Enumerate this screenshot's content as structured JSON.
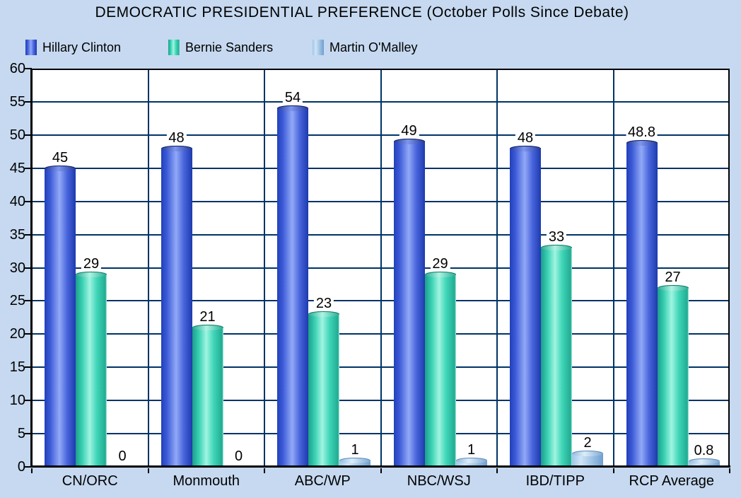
{
  "title": "DEMOCRATIC PRESIDENTIAL PREFERENCE (October Polls Since Debate)",
  "colors": {
    "background": "#c6d9f0",
    "plot_background": "#ffffff",
    "gridline": "#003366",
    "axis": "#000000",
    "clinton_bar": "#2b49c8",
    "sanders_bar": "#2fc7ac",
    "omalley_bar": "#9dc3e6",
    "label_text": "#000000"
  },
  "chart_data": {
    "type": "bar",
    "categories": [
      "CN/ORC",
      "Monmouth",
      "ABC/WP",
      "NBC/WSJ",
      "IBD/TIPP",
      "RCP Average"
    ],
    "series": [
      {
        "key": "clinton",
        "name": "Hillary Clinton",
        "values": [
          45,
          48,
          54,
          49,
          48,
          48.8
        ]
      },
      {
        "key": "sanders",
        "name": "Bernie Sanders",
        "values": [
          29,
          21,
          23,
          29,
          33,
          27
        ]
      },
      {
        "key": "omalley",
        "name": "Martin O'Malley",
        "values": [
          0,
          0,
          1,
          1,
          2,
          0.8
        ]
      }
    ],
    "value_labels": [
      [
        "45",
        "48",
        "54",
        "49",
        "48",
        "48.8"
      ],
      [
        "29",
        "21",
        "23",
        "29",
        "33",
        "27"
      ],
      [
        "0",
        "0",
        "1",
        "1",
        "2",
        "0.8"
      ]
    ],
    "title": "DEMOCRATIC PRESIDENTIAL PREFERENCE (October Polls Since Debate)",
    "xlabel": "",
    "ylabel": "",
    "ylim": [
      0,
      60
    ],
    "ytick_step": 5,
    "ytick_labels": [
      "0",
      "5",
      "10",
      "15",
      "20",
      "25",
      "30",
      "35",
      "40",
      "45",
      "50",
      "55",
      "60"
    ],
    "grid": true,
    "legend_position": "top"
  }
}
